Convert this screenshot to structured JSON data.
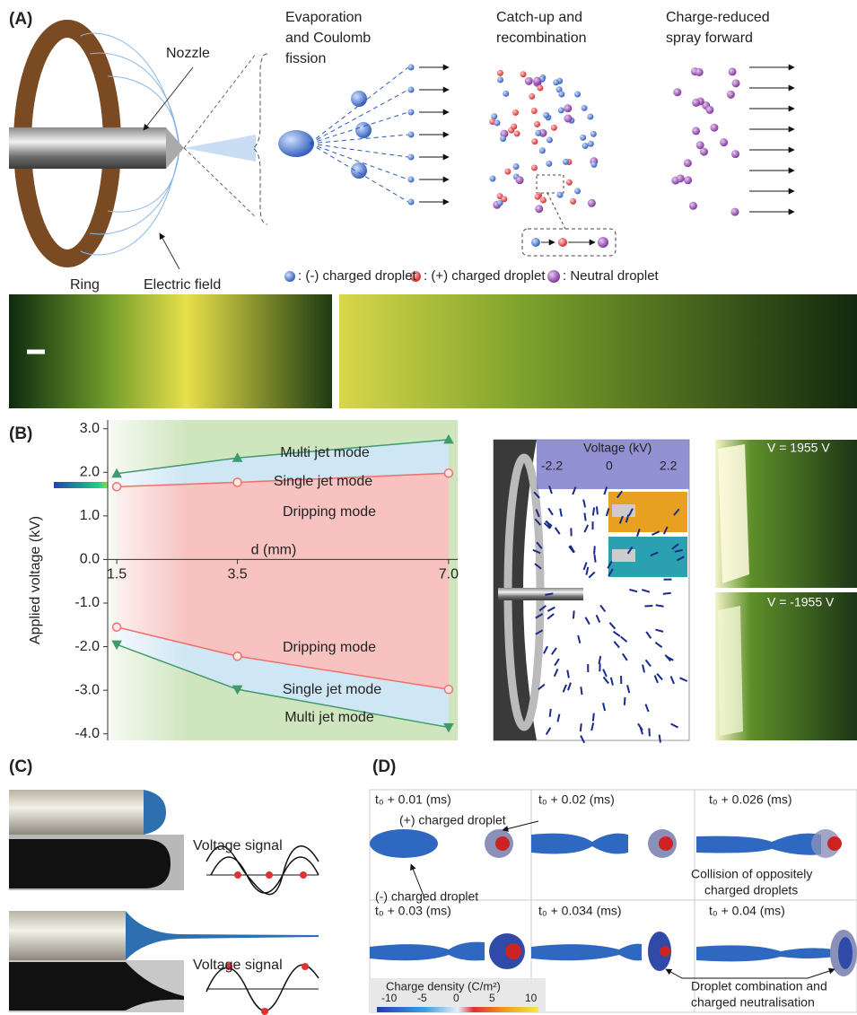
{
  "panel_a": {
    "label": "(A)",
    "nozzle": "Nozzle",
    "ring": "Ring",
    "field": "Electric field",
    "stages": [
      [
        "Evaporation",
        "and Coulomb",
        "fission"
      ],
      [
        "Catch-up and",
        "recombination"
      ],
      [
        "Charge-reduced",
        "spray forward"
      ]
    ],
    "legend": [
      ": (-) charged droplet",
      ": (+) charged droplet",
      ": Neutral droplet"
    ]
  },
  "panel_b": {
    "label": "(B)",
    "sim_colorbar_title": "Voltage (kV)",
    "sim_colorbar_ticks": [
      "-2.2",
      "0",
      "2.2"
    ],
    "photo_labels": [
      "V = 1955 V",
      "V = -1955 V"
    ]
  },
  "chart_data": {
    "type": "line",
    "ylabel": "Applied voltage (kV)",
    "xlabel": "d (mm)",
    "x": [
      1.5,
      3.5,
      7
    ],
    "xlim": [
      1.35,
      7.15
    ],
    "xticks": [
      1.5,
      3.5,
      {
        "value": 7,
        "label": "7.0"
      }
    ],
    "ylim": [
      -4.15,
      3.2
    ],
    "yticks": [
      {
        "value": 3,
        "label": "3.0"
      },
      {
        "value": 2,
        "label": "2.0"
      },
      {
        "value": 1,
        "label": "1.0"
      },
      {
        "value": 0,
        "label": "0.0"
      },
      {
        "value": -1,
        "label": "-1.0"
      },
      {
        "value": -2,
        "label": "-2.0"
      },
      {
        "value": -3,
        "label": "-3.0"
      },
      {
        "value": -4,
        "label": "-4.0"
      }
    ],
    "series": [
      {
        "color": "#3f9a6e",
        "marker": "triangle-up",
        "values": [
          1.97,
          2.33,
          2.75
        ]
      },
      {
        "color": "#f0706a",
        "marker": "circle",
        "values": [
          1.67,
          1.77,
          1.98
        ]
      },
      {
        "color": "#f0706a",
        "marker": "circle",
        "values": [
          -1.55,
          -2.22,
          -2.98
        ]
      },
      {
        "color": "#3f9a6e",
        "marker": "triangle-down",
        "values": [
          -1.95,
          -2.98,
          -3.85
        ]
      }
    ],
    "annotations": [
      "Multi jet mode",
      "Single jet mode",
      "Dripping mode",
      "Dripping mode",
      "Single jet mode",
      "Multi jet mode"
    ]
  },
  "panel_c": {
    "label": "(C)",
    "signal_labels": [
      "Voltage signal",
      "Voltage signal"
    ]
  },
  "panel_d": {
    "label": "(D)",
    "frames": [
      "t₀ + 0.01 (ms)",
      "t₀ + 0.02 (ms)",
      "t₀ + 0.026 (ms)",
      "t₀ + 0.03 (ms)",
      "t₀ + 0.034 (ms)",
      "t₀ + 0.04 (ms)"
    ],
    "positive": "(+) charged droplet",
    "negative": "(-) charged droplet",
    "collision": [
      "Collision of oppositely",
      "charged droplets"
    ],
    "combination": [
      "Droplet combination and",
      "charged neutralisation"
    ],
    "colorbar_title": "Charge density (C/m²)",
    "colorbar_ticks": [
      -10,
      -5,
      0,
      5,
      10
    ]
  }
}
